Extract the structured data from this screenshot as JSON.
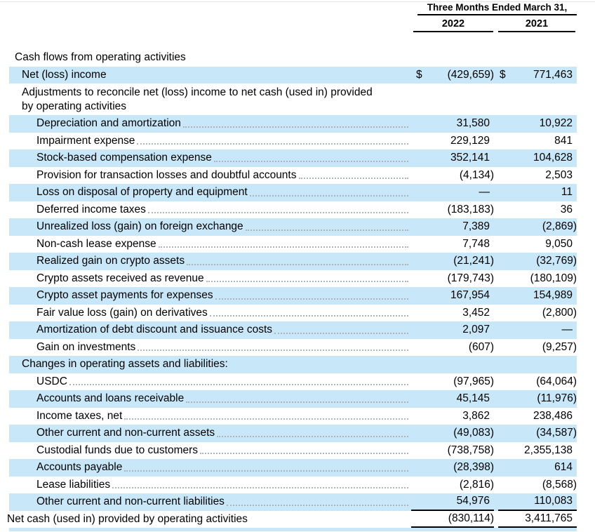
{
  "header": {
    "period_label": "Three Months Ended March 31,",
    "col_2022": "2022",
    "col_2021": "2021"
  },
  "table": {
    "currency_symbol": "$",
    "rows": [
      {
        "label": "Cash flows from operating activities",
        "indent": 0,
        "highlight": false,
        "leader": false,
        "v2022": null,
        "v2021": null
      },
      {
        "label": "Net (loss) income",
        "indent": 1,
        "highlight": true,
        "leader": false,
        "dollar": true,
        "v2022": "(429,659)",
        "v2021": "771,463"
      },
      {
        "label": "Adjustments to reconcile net (loss) income to net cash (used in) provided\nby operating activities",
        "indent": 1,
        "highlight": false,
        "leader": false,
        "wrap": true,
        "v2022": null,
        "v2021": null
      },
      {
        "label": "Depreciation and amortization",
        "indent": 2,
        "highlight": true,
        "leader": true,
        "v2022": "31,580",
        "v2021": "10,922"
      },
      {
        "label": "Impairment expense",
        "indent": 2,
        "highlight": false,
        "leader": true,
        "v2022": "229,129",
        "v2021": "841"
      },
      {
        "label": "Stock-based compensation expense",
        "indent": 2,
        "highlight": true,
        "leader": true,
        "v2022": "352,141",
        "v2021": "104,628"
      },
      {
        "label": "Provision for transaction losses and doubtful accounts",
        "indent": 2,
        "highlight": false,
        "leader": true,
        "v2022": "(4,134)",
        "v2021": "2,503"
      },
      {
        "label": "Loss on disposal of property and equipment",
        "indent": 2,
        "highlight": true,
        "leader": true,
        "v2022": "—",
        "v2021": "11"
      },
      {
        "label": "Deferred income taxes",
        "indent": 2,
        "highlight": false,
        "leader": true,
        "v2022": "(183,183)",
        "v2021": "36"
      },
      {
        "label": "Unrealized loss (gain) on foreign exchange",
        "indent": 2,
        "highlight": true,
        "leader": true,
        "v2022": "7,389",
        "v2021": "(2,869)"
      },
      {
        "label": "Non-cash lease expense",
        "indent": 2,
        "highlight": false,
        "leader": true,
        "v2022": "7,748",
        "v2021": "9,050"
      },
      {
        "label": "Realized gain on crypto assets",
        "indent": 2,
        "highlight": true,
        "leader": true,
        "v2022": "(21,241)",
        "v2021": "(32,769)"
      },
      {
        "label": "Crypto assets received as revenue",
        "indent": 2,
        "highlight": false,
        "leader": true,
        "v2022": "(179,743)",
        "v2021": "(180,109)"
      },
      {
        "label": "Crypto asset payments for expenses",
        "indent": 2,
        "highlight": true,
        "leader": true,
        "v2022": "167,954",
        "v2021": "154,989"
      },
      {
        "label": "Fair value loss (gain) on derivatives",
        "indent": 2,
        "highlight": false,
        "leader": true,
        "v2022": "3,452",
        "v2021": "(2,800)"
      },
      {
        "label": "Amortization of debt discount and issuance costs",
        "indent": 2,
        "highlight": true,
        "leader": true,
        "v2022": "2,097",
        "v2021": "—"
      },
      {
        "label": "Gain on investments",
        "indent": 2,
        "highlight": false,
        "leader": true,
        "v2022": "(607)",
        "v2021": "(9,257)"
      },
      {
        "label": "Changes in operating assets and liabilities:",
        "indent": 1,
        "highlight": true,
        "leader": false,
        "v2022": null,
        "v2021": null
      },
      {
        "label": "USDC",
        "indent": 2,
        "highlight": false,
        "leader": true,
        "v2022": "(97,965)",
        "v2021": "(64,064)"
      },
      {
        "label": "Accounts and loans receivable",
        "indent": 2,
        "highlight": true,
        "leader": true,
        "v2022": "45,145",
        "v2021": "(11,976)"
      },
      {
        "label": "Income taxes, net",
        "indent": 2,
        "highlight": false,
        "leader": true,
        "v2022": "3,862",
        "v2021": "238,486"
      },
      {
        "label": "Other current and non-current assets",
        "indent": 2,
        "highlight": true,
        "leader": true,
        "v2022": "(49,083)",
        "v2021": "(34,587)"
      },
      {
        "label": "Custodial funds due to customers",
        "indent": 2,
        "highlight": false,
        "leader": true,
        "v2022": "(738,758)",
        "v2021": "2,355,138"
      },
      {
        "label": "Accounts payable",
        "indent": 2,
        "highlight": true,
        "leader": true,
        "v2022": "(28,398)",
        "v2021": "614"
      },
      {
        "label": "Lease liabilities",
        "indent": 2,
        "highlight": false,
        "leader": true,
        "v2022": "(2,816)",
        "v2021": "(8,568)"
      },
      {
        "label": "Other current and non-current liabilities",
        "indent": 2,
        "highlight": true,
        "leader": true,
        "rule_below": true,
        "v2022": "54,976",
        "v2021": "110,083"
      },
      {
        "label": "Net cash (used in) provided by operating activities",
        "indent": 3,
        "highlight": false,
        "leader": false,
        "rule_below": true,
        "v2022": "(830,114)",
        "v2021": "3,411,765"
      },
      {
        "label": "",
        "indent": 0,
        "highlight": true,
        "leader": false,
        "sliver": true,
        "v2022": null,
        "v2021": null
      }
    ]
  }
}
